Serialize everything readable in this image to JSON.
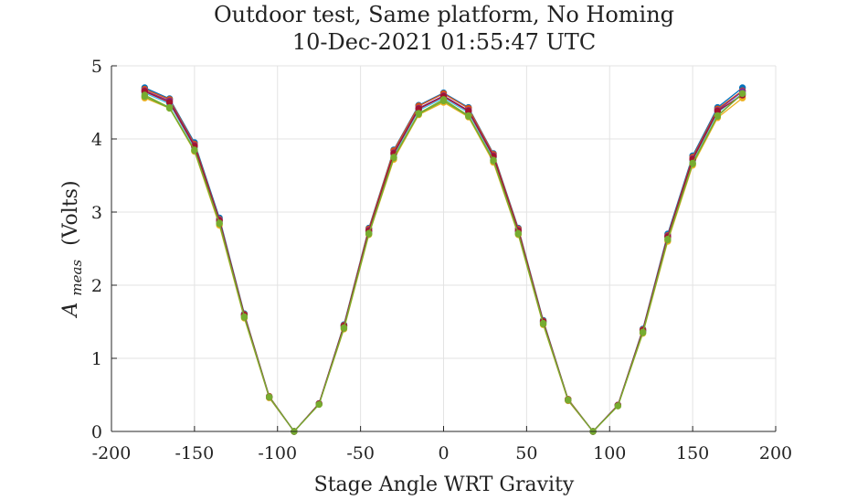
{
  "chart_data": {
    "type": "line",
    "title": [
      "Outdoor test, Same platform, No Homing",
      "10-Dec-2021 01:55:47 UTC"
    ],
    "xlabel": "Stage Angle WRT Gravity",
    "ylabel": {
      "symbol": "A",
      "subscript": "meas",
      "unit": "(Volts)"
    },
    "xlim": [
      -200,
      200
    ],
    "ylim": [
      0,
      5
    ],
    "xticks": [
      -200,
      -150,
      -100,
      -50,
      0,
      50,
      100,
      150,
      200
    ],
    "yticks": [
      0,
      1,
      2,
      3,
      4,
      5
    ],
    "grid": true,
    "x": [
      -180,
      -165,
      -150,
      -135,
      -120,
      -105,
      -90,
      -75,
      -60,
      -45,
      -30,
      -15,
      0,
      15,
      30,
      45,
      60,
      75,
      90,
      105,
      120,
      135,
      150,
      165,
      180
    ],
    "series": [
      {
        "color": "#0072BD",
        "values": [
          4.7,
          4.55,
          3.95,
          2.92,
          1.61,
          0.48,
          0.0,
          0.38,
          1.46,
          2.78,
          3.85,
          4.46,
          4.63,
          4.43,
          3.8,
          2.78,
          1.52,
          0.44,
          0.0,
          0.36,
          1.4,
          2.7,
          3.77,
          4.43,
          4.7
        ]
      },
      {
        "color": "#D95319",
        "values": [
          4.68,
          4.54,
          3.93,
          2.9,
          1.6,
          0.48,
          0.0,
          0.38,
          1.45,
          2.77,
          3.84,
          4.45,
          4.62,
          4.42,
          3.79,
          2.77,
          1.51,
          0.44,
          0.0,
          0.36,
          1.39,
          2.68,
          3.75,
          4.41,
          4.66
        ]
      },
      {
        "color": "#EDB120",
        "values": [
          4.56,
          4.42,
          3.83,
          2.82,
          1.55,
          0.46,
          0.0,
          0.37,
          1.4,
          2.69,
          3.72,
          4.33,
          4.5,
          4.3,
          3.68,
          2.69,
          1.46,
          0.42,
          0.0,
          0.35,
          1.34,
          2.6,
          3.64,
          4.29,
          4.56
        ]
      },
      {
        "color": "#7E2F8E",
        "values": [
          4.66,
          4.52,
          3.91,
          2.89,
          1.59,
          0.47,
          0.0,
          0.38,
          1.44,
          2.75,
          3.81,
          4.42,
          4.59,
          4.39,
          3.77,
          2.75,
          1.5,
          0.43,
          0.0,
          0.36,
          1.38,
          2.67,
          3.73,
          4.39,
          4.65
        ]
      },
      {
        "color": "#77AC30",
        "values": [
          4.58,
          4.42,
          3.84,
          2.84,
          1.56,
          0.47,
          0.0,
          0.37,
          1.41,
          2.7,
          3.74,
          4.34,
          4.52,
          4.31,
          3.7,
          2.7,
          1.47,
          0.43,
          0.0,
          0.35,
          1.35,
          2.62,
          3.66,
          4.31,
          4.62
        ]
      },
      {
        "color": "#4DBEEE",
        "values": [
          4.63,
          4.48,
          3.88,
          2.87,
          1.58,
          0.47,
          0.0,
          0.38,
          1.43,
          2.73,
          3.78,
          4.39,
          4.56,
          4.36,
          3.74,
          2.73,
          1.49,
          0.43,
          0.0,
          0.36,
          1.37,
          2.65,
          3.7,
          4.36,
          4.62
        ]
      },
      {
        "color": "#A2142F",
        "values": [
          4.65,
          4.5,
          3.9,
          2.88,
          1.59,
          0.47,
          0.0,
          0.38,
          1.44,
          2.74,
          3.8,
          4.41,
          4.58,
          4.38,
          3.76,
          2.74,
          1.5,
          0.43,
          0.0,
          0.36,
          1.38,
          2.66,
          3.72,
          4.38,
          4.6
        ]
      },
      {
        "color": "#77AC30",
        "values": [
          4.6,
          4.43,
          3.85,
          2.85,
          1.57,
          0.47,
          0.0,
          0.37,
          1.42,
          2.71,
          3.75,
          4.35,
          4.54,
          4.32,
          3.71,
          2.71,
          1.48,
          0.43,
          0.0,
          0.35,
          1.36,
          2.63,
          3.67,
          4.32,
          4.62
        ]
      }
    ]
  }
}
